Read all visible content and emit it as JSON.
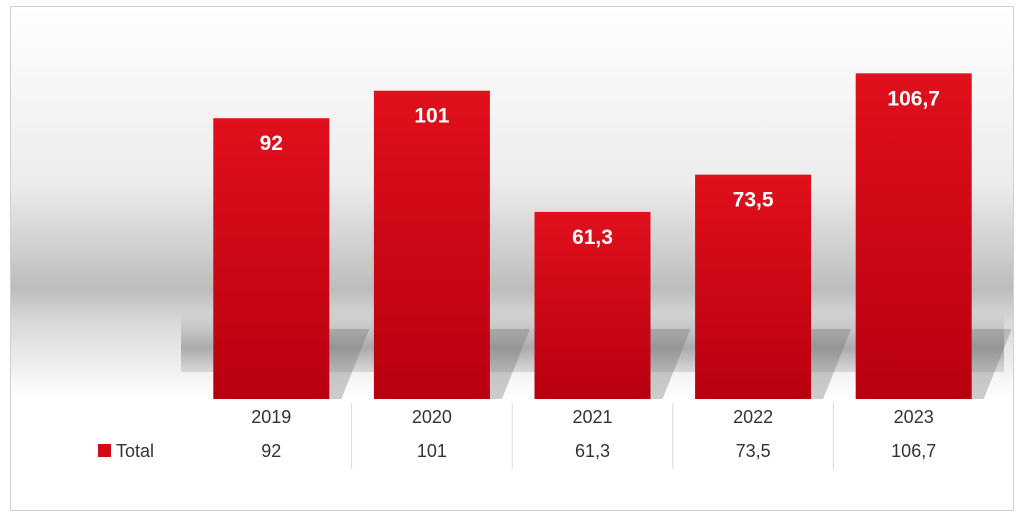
{
  "chart_data": {
    "type": "bar",
    "categories": [
      "2019",
      "2020",
      "2021",
      "2022",
      "2023"
    ],
    "series": [
      {
        "name": "Total",
        "values": [
          92,
          101,
          61.3,
          73.5,
          106.7
        ],
        "labels": [
          "92",
          "101",
          "61,3",
          "73,5",
          "106,7"
        ]
      }
    ],
    "title": "",
    "xlabel": "",
    "ylabel": "",
    "ylim": [
      0,
      115
    ],
    "grid": false,
    "legend": "data-table",
    "colors": {
      "bar": "#d40a16",
      "bar_dark": "#b8000f",
      "text": "#333333"
    }
  }
}
